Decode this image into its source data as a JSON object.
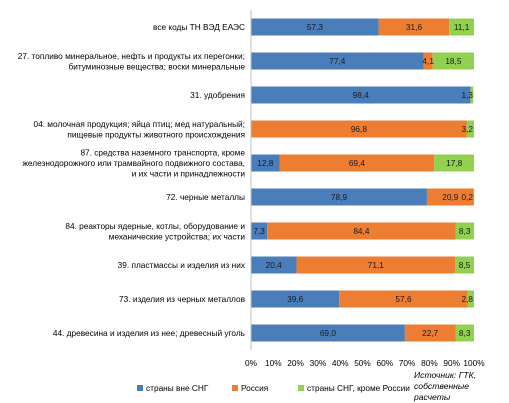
{
  "chart_data": {
    "type": "bar",
    "stacked": true,
    "orientation": "horizontal",
    "normalized_percent": true,
    "categories": [
      [
        "все коды ТН ВЭД ЕАЭС"
      ],
      [
        "27. топливо минеральное, нефть и продукты их перегонки;",
        "битуминозные вещества; воски минеральные"
      ],
      [
        "31. удобрения"
      ],
      [
        "04. молочная продукция; яйца птиц; мед натуральный;",
        "пищевые продукты животного происхождения"
      ],
      [
        "87. средства наземного транспорта, кроме",
        "железнодорожного  или трамвайного подвижного состава,",
        "и их части и принадлежности"
      ],
      [
        "72. черные металлы"
      ],
      [
        "84. реакторы ядерные, котлы, оборудование и",
        "механические устройства; их части"
      ],
      [
        "39. пластмассы и изделия из них"
      ],
      [
        "73. изделия  из черных металлов"
      ],
      [
        "44. древесина и изделия из нее; древесный уголь"
      ]
    ],
    "series": [
      {
        "name": "страны вне СНГ",
        "color": "#4a7ebb",
        "values": [
          57.3,
          77.4,
          98.4,
          0,
          12.8,
          78.9,
          7.3,
          20.4,
          39.6,
          69.0
        ],
        "labels": [
          "57,3",
          "77,4",
          "98,4",
          "",
          "12,8",
          "78,9",
          "7,3",
          "20,4",
          "39,6",
          "69,0"
        ]
      },
      {
        "name": "Россия",
        "color": "#ed7d31",
        "values": [
          31.6,
          4.1,
          0,
          96.8,
          69.4,
          20.9,
          84.4,
          71.1,
          57.6,
          22.7
        ],
        "labels": [
          "31,6",
          "4,1",
          "",
          "96,8",
          "69,4",
          "20,9",
          "84,4",
          "71,1",
          "57,6",
          "22,7"
        ]
      },
      {
        "name": "страны СНГ, кроме России",
        "color": "#92d050",
        "values": [
          11.1,
          18.5,
          1.3,
          3.2,
          17.8,
          0.2,
          8.3,
          8.5,
          2.8,
          8.3
        ],
        "labels": [
          "11,1",
          "18,5",
          "1,3",
          "3,2",
          "17,8",
          "0,2",
          "8,3",
          "8,5",
          "2,8",
          "8,3"
        ]
      }
    ],
    "xticks": [
      "0%",
      "10%",
      "20%",
      "30%",
      "40%",
      "50%",
      "60%",
      "70%",
      "80%",
      "90%",
      "100%"
    ],
    "xlim": [
      0,
      100
    ],
    "grid": false,
    "legend": "bottom"
  },
  "source": [
    "Источник: ГТК,",
    "собственные расчеты"
  ]
}
